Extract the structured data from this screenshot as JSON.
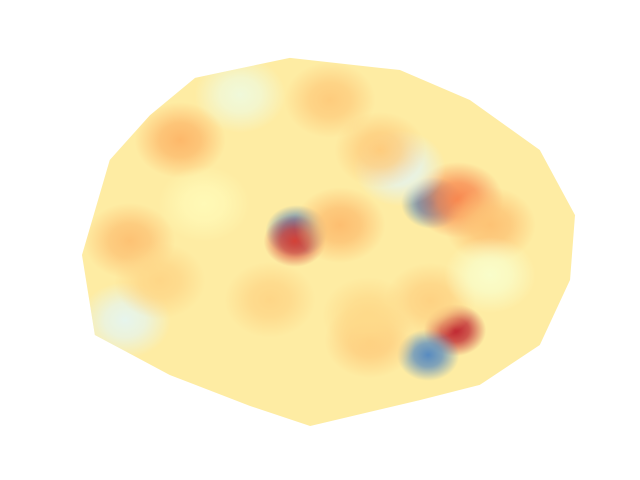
{
  "chart_data": {
    "type": "contour",
    "colormap": "RdYlBu_r",
    "xlim": [
      0,
      1
    ],
    "ylim": [
      0,
      1
    ],
    "vlim": [
      -1,
      1
    ],
    "background_value": 0.15,
    "hull": {
      "x": [
        0.232,
        0.423,
        0.645,
        0.786,
        0.927,
        0.998,
        0.988,
        0.927,
        0.806,
        0.685,
        0.464,
        0.343,
        0.181,
        0.03,
        0.004,
        0.06,
        0.141
      ],
      "y": [
        0.941,
        0.995,
        0.962,
        0.881,
        0.746,
        0.57,
        0.395,
        0.219,
        0.111,
        0.07,
        0.0,
        0.054,
        0.138,
        0.246,
        0.462,
        0.719,
        0.84
      ]
    },
    "x": [
      0.756,
      0.702,
      0.71,
      0.762,
      0.437,
      0.433,
      0.645,
      0.091,
      0.323,
      0.202,
      0.1,
      0.524,
      0.827,
      0.585,
      0.504,
      0.605,
      0.706,
      0.161,
      0.383,
      0.827,
      0.25,
      0.58
    ],
    "y": [
      0.259,
      0.192,
      0.603,
      0.611,
      0.527,
      0.5,
      0.697,
      0.286,
      0.895,
      0.773,
      0.5,
      0.543,
      0.543,
      0.232,
      0.881,
      0.746,
      0.338,
      0.392,
      0.341,
      0.408,
      0.6,
      0.3
    ],
    "values": [
      0.92,
      -0.65,
      -0.72,
      0.65,
      -0.75,
      0.85,
      -0.22,
      -0.2,
      -0.12,
      0.45,
      0.4,
      0.42,
      0.4,
      0.35,
      0.35,
      0.35,
      0.32,
      0.3,
      0.3,
      -0.05,
      0.05,
      0.28
    ]
  }
}
